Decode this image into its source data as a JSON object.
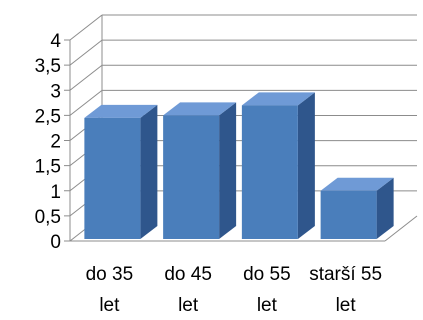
{
  "chart_data": {
    "type": "bar",
    "style": "3d-clustered-column",
    "categories": [
      {
        "line1": "do 35",
        "line2": "let"
      },
      {
        "line1": "do 45",
        "line2": "let"
      },
      {
        "line1": "do 55",
        "line2": "let"
      },
      {
        "line1": "starší 55",
        "line2": "let"
      }
    ],
    "values": [
      2.45,
      2.5,
      2.7,
      1.0
    ],
    "ylim": [
      0,
      4
    ],
    "yticks": [
      "0",
      "0,5",
      "1",
      "1,5",
      "2",
      "2,5",
      "3",
      "3,5",
      "4"
    ],
    "grid": true,
    "legend": "none",
    "colors": {
      "bar_front": "#4a7ebb",
      "bar_top": "#6f9ad6",
      "bar_side": "#2f568c",
      "grid": "#8c8c8c",
      "axis": "#8c8c8c"
    }
  }
}
